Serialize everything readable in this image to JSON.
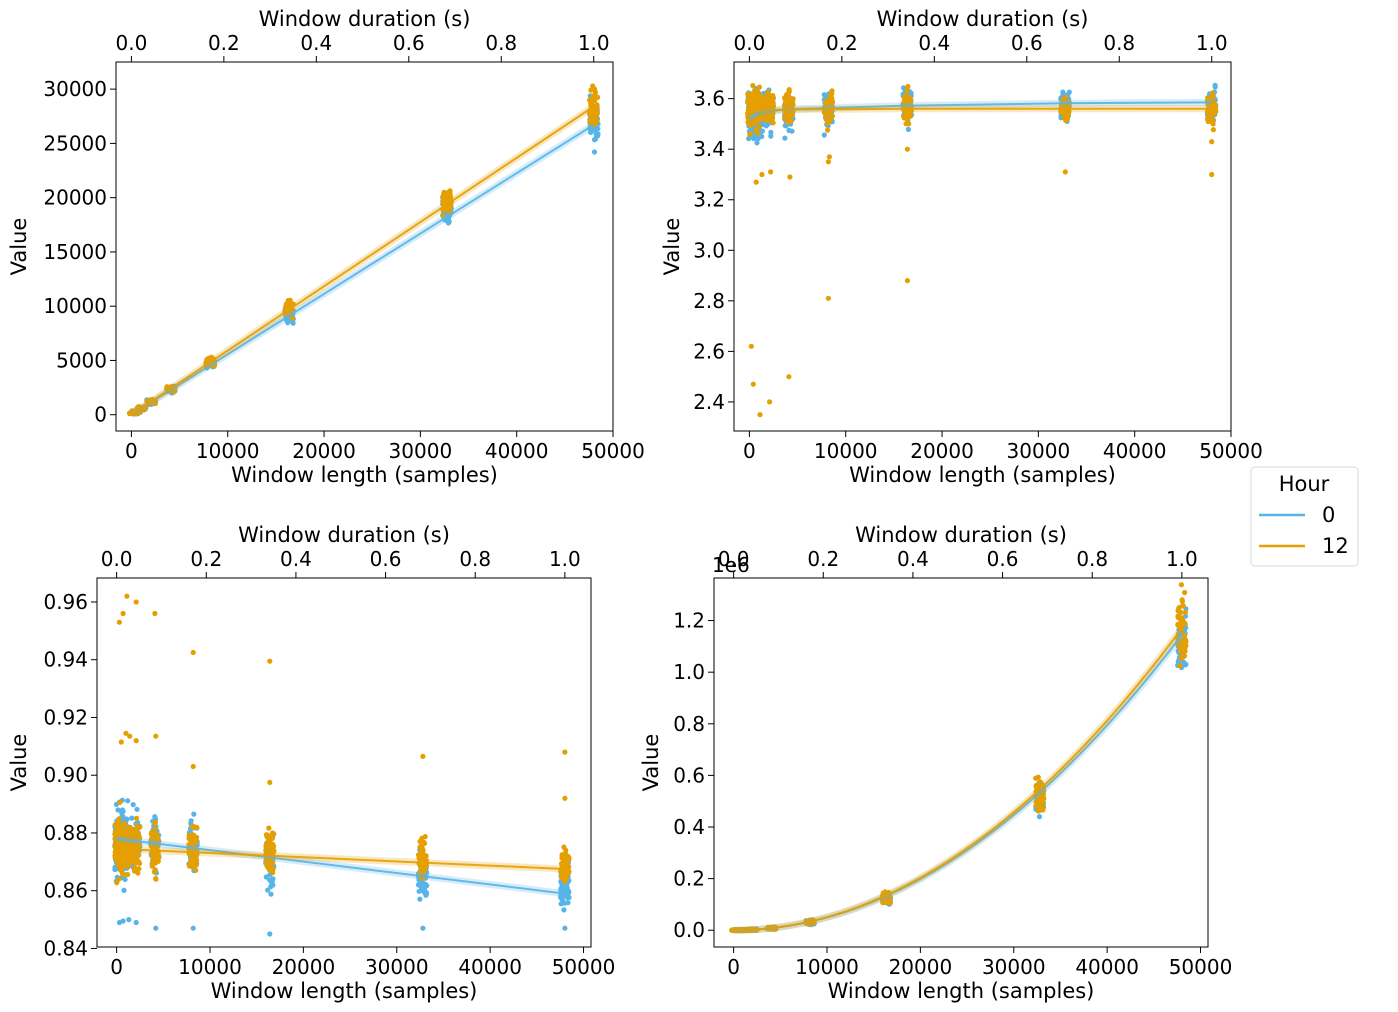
{
  "figure": {
    "legend": {
      "title": "Hour",
      "placement": "right",
      "entries": [
        {
          "label": "0",
          "color": "#56B4E9"
        },
        {
          "label": "12",
          "color": "#E69F00"
        }
      ]
    }
  },
  "chart_data": [
    {
      "type": "scatter",
      "position": "top-left",
      "title": "",
      "xlabel": "Window length (samples)",
      "ylabel": "Value",
      "top_xlabel": "Window duration (s)",
      "xlim": [
        -1600,
        50000
      ],
      "ylim": [
        -1500,
        32500
      ],
      "top_xlim": [
        -0.0333,
        1.0417
      ],
      "xticks": [
        0,
        10000,
        20000,
        30000,
        40000,
        50000
      ],
      "yticks": [
        0,
        5000,
        10000,
        15000,
        20000,
        25000,
        30000
      ],
      "top_xticks": [
        0.0,
        0.2,
        0.4,
        0.6,
        0.8,
        1.0
      ],
      "tick_format_y": "int",
      "top_tick_format": "1",
      "x_offset_label": "",
      "grid": false,
      "window_lengths": [
        256,
        512,
        1024,
        2048,
        4096,
        8192,
        16384,
        32768,
        48000
      ],
      "series": [
        {
          "name": "0",
          "color": "#56B4E9",
          "centers": [
            140,
            290,
            570,
            1150,
            2320,
            4650,
            9320,
            18640,
            26700
          ],
          "spreads": [
            60,
            90,
            160,
            250,
            350,
            600,
            1100,
            2000,
            2800
          ],
          "fit": [
            [
              0,
              0
            ],
            [
              48000,
              26700
            ]
          ]
        },
        {
          "name": "12",
          "color": "#E69F00",
          "centers": [
            145,
            300,
            590,
            1200,
            2420,
            4850,
            9800,
            19500,
            28200
          ],
          "spreads": [
            60,
            90,
            160,
            250,
            350,
            600,
            1100,
            2000,
            3000
          ],
          "fit": [
            [
              0,
              0
            ],
            [
              48000,
              28400
            ]
          ]
        }
      ]
    },
    {
      "type": "scatter",
      "position": "top-right",
      "title": "",
      "xlabel": "Window length (samples)",
      "ylabel": "Value",
      "top_xlabel": "Window duration (s)",
      "xlim": [
        -1600,
        50000
      ],
      "ylim": [
        2.285,
        3.745
      ],
      "top_xlim": [
        -0.0333,
        1.0417
      ],
      "xticks": [
        0,
        10000,
        20000,
        30000,
        40000,
        50000
      ],
      "yticks": [
        2.4,
        2.6,
        2.8,
        3.0,
        3.2,
        3.4,
        3.6
      ],
      "top_xticks": [
        0.0,
        0.2,
        0.4,
        0.6,
        0.8,
        1.0
      ],
      "tick_format_y": "1",
      "top_tick_format": "1",
      "x_offset_label": "",
      "grid": false,
      "window_lengths": [
        256,
        512,
        1024,
        2048,
        4096,
        8192,
        16384,
        32768,
        48000
      ],
      "series": [
        {
          "name": "0",
          "color": "#56B4E9",
          "centers": [
            3.53,
            3.54,
            3.54,
            3.55,
            3.55,
            3.56,
            3.57,
            3.57,
            3.58
          ],
          "spreads": [
            0.14,
            0.14,
            0.12,
            0.12,
            0.12,
            0.1,
            0.1,
            0.09,
            0.09
          ],
          "outliers": [],
          "fit": [
            [
              0,
              3.52
            ],
            [
              1000,
              3.545
            ],
            [
              4000,
              3.558
            ],
            [
              16000,
              3.572
            ],
            [
              32768,
              3.582
            ],
            [
              48000,
              3.585
            ]
          ]
        },
        {
          "name": "12",
          "color": "#E69F00",
          "centers": [
            3.55,
            3.55,
            3.56,
            3.56,
            3.56,
            3.56,
            3.56,
            3.56,
            3.56
          ],
          "spreads": [
            0.12,
            0.12,
            0.11,
            0.1,
            0.1,
            0.09,
            0.09,
            0.08,
            0.08
          ],
          "outliers": [
            [
              200,
              2.62
            ],
            [
              400,
              2.47
            ],
            [
              700,
              3.27
            ],
            [
              1100,
              2.35
            ],
            [
              1300,
              3.3
            ],
            [
              2100,
              2.4
            ],
            [
              2200,
              3.31
            ],
            [
              4100,
              2.5
            ],
            [
              4200,
              3.29
            ],
            [
              8200,
              2.81
            ],
            [
              8200,
              3.35
            ],
            [
              8300,
              3.37
            ],
            [
              16400,
              2.88
            ],
            [
              16400,
              3.4
            ],
            [
              32800,
              3.31
            ],
            [
              48000,
              3.3
            ],
            [
              48000,
              3.43
            ]
          ],
          "fit": [
            [
              0,
              3.553
            ],
            [
              4000,
              3.557
            ],
            [
              16000,
              3.56
            ],
            [
              48000,
              3.56
            ]
          ]
        }
      ]
    },
    {
      "type": "scatter",
      "position": "bottom-left",
      "title": "",
      "xlabel": "Window length (samples)",
      "ylabel": "Value",
      "top_xlabel": "Window duration (s)",
      "xlim": [
        -2100,
        50800
      ],
      "ylim": [
        0.8405,
        0.9683
      ],
      "top_xlim": [
        -0.0438,
        1.0583
      ],
      "xticks": [
        0,
        10000,
        20000,
        30000,
        40000,
        50000
      ],
      "yticks": [
        0.84,
        0.86,
        0.88,
        0.9,
        0.92,
        0.94,
        0.96
      ],
      "top_xticks": [
        0.0,
        0.2,
        0.4,
        0.6,
        0.8,
        1.0
      ],
      "tick_format_y": "2",
      "top_tick_format": "1",
      "x_offset_label": "",
      "grid": false,
      "window_lengths": [
        256,
        512,
        1024,
        2048,
        4096,
        8192,
        16384,
        32768,
        48000
      ],
      "series": [
        {
          "name": "0",
          "color": "#56B4E9",
          "centers": [
            0.878,
            0.878,
            0.877,
            0.877,
            0.877,
            0.875,
            0.871,
            0.865,
            0.86
          ],
          "spreads": [
            0.018,
            0.017,
            0.016,
            0.015,
            0.015,
            0.014,
            0.013,
            0.012,
            0.012
          ],
          "outliers": [
            [
              300,
              0.849
            ],
            [
              700,
              0.8495
            ],
            [
              1300,
              0.85
            ],
            [
              2100,
              0.849
            ],
            [
              4200,
              0.847
            ],
            [
              8200,
              0.847
            ],
            [
              16400,
              0.845
            ],
            [
              32800,
              0.847
            ],
            [
              48000,
              0.847
            ]
          ],
          "fit": [
            [
              0,
              0.878
            ],
            [
              48000,
              0.859
            ]
          ]
        },
        {
          "name": "12",
          "color": "#E69F00",
          "centers": [
            0.875,
            0.875,
            0.875,
            0.875,
            0.874,
            0.874,
            0.873,
            0.871,
            0.869
          ],
          "spreads": [
            0.014,
            0.014,
            0.013,
            0.013,
            0.013,
            0.012,
            0.012,
            0.011,
            0.011
          ],
          "outliers": [
            [
              300,
              0.953
            ],
            [
              500,
              0.9115
            ],
            [
              700,
              0.956
            ],
            [
              1000,
              0.9145
            ],
            [
              1100,
              0.962
            ],
            [
              1400,
              0.9135
            ],
            [
              2100,
              0.96
            ],
            [
              2100,
              0.912
            ],
            [
              4100,
              0.956
            ],
            [
              4200,
              0.9135
            ],
            [
              8200,
              0.9425
            ],
            [
              8200,
              0.903
            ],
            [
              16400,
              0.9395
            ],
            [
              16400,
              0.8975
            ],
            [
              32800,
              0.9065
            ],
            [
              48000,
              0.908
            ],
            [
              48000,
              0.892
            ]
          ],
          "fit": [
            [
              0,
              0.8745
            ],
            [
              48000,
              0.8675
            ]
          ]
        }
      ]
    },
    {
      "type": "scatter",
      "position": "bottom-right",
      "title": "",
      "xlabel": "Window length (samples)",
      "ylabel": "Value",
      "top_xlabel": "Window duration (s)",
      "xlim": [
        -2100,
        50800
      ],
      "ylim": [
        -0.065,
        1.365
      ],
      "top_xlim": [
        -0.0438,
        1.0583
      ],
      "xticks": [
        0,
        10000,
        20000,
        30000,
        40000,
        50000
      ],
      "yticks": [
        0.0,
        0.2,
        0.4,
        0.6,
        0.8,
        1.0,
        1.2
      ],
      "top_xticks": [
        0.0,
        0.2,
        0.4,
        0.6,
        0.8,
        1.0
      ],
      "tick_format_y": "1",
      "top_tick_format": "1",
      "x_offset_label": "1e6",
      "grid": false,
      "window_lengths": [
        256,
        512,
        1024,
        2048,
        4096,
        8192,
        16384,
        32768,
        48000
      ],
      "series": [
        {
          "name": "0",
          "color": "#56B4E9",
          "centers": [
            0,
            0.0001,
            0.0005,
            0.002,
            0.008,
            0.031,
            0.12,
            0.51,
            1.12
          ],
          "spreads": [
            0.002,
            0.002,
            0.003,
            0.004,
            0.006,
            0.012,
            0.03,
            0.08,
            0.2
          ],
          "outliers": [],
          "quad": 4.965e-10
        },
        {
          "name": "12",
          "color": "#E69F00",
          "centers": [
            0,
            0.0001,
            0.0005,
            0.002,
            0.008,
            0.032,
            0.125,
            0.53,
            1.18
          ],
          "spreads": [
            0.002,
            0.002,
            0.003,
            0.004,
            0.006,
            0.012,
            0.03,
            0.08,
            0.22
          ],
          "outliers": [],
          "quad": 5.078e-10
        }
      ]
    }
  ]
}
